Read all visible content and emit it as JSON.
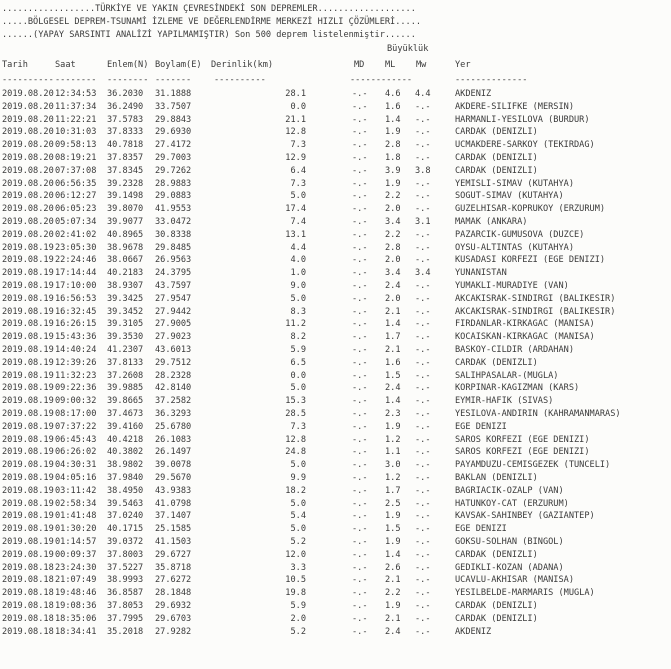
{
  "title_lines": [
    "..................TÜRKİYE VE YAKIN ÇEVRESİNDEKİ SON DEPREMLER...................",
    ".....BÖLGESEL DEPREM-TSUNAMİ İZLEME VE DEĞERLENDİRME MERKEZİ HIZLI ÇÖZÜMLERİ.....",
    "......(YAPAY SARSINTI ANALİZİ YAPILMAMIŞTIR) Son 500 deprem listelenmiştir......"
  ],
  "group_header": "Büyüklük",
  "columns": [
    "Tarih",
    "Saat",
    "Enlem(N)",
    "Boylam(E)",
    "Derinlik(km)",
    "MD",
    "ML",
    "Mw",
    "Yer"
  ],
  "dashes": [
    "----------",
    "--------",
    "--------",
    "-------",
    "----------",
    "------------",
    "--------------"
  ],
  "rows": [
    [
      "2019.08.20",
      "12:34:53",
      "36.2030",
      "31.1888",
      "28.1",
      "-.-",
      "4.6",
      "4.4",
      "AKDENIZ"
    ],
    [
      "2019.08.20",
      "11:37:34",
      "36.2490",
      "33.7507",
      "0.0",
      "-.-",
      "1.6",
      "-.-",
      "AKDERE-SILIFKE (MERSIN)"
    ],
    [
      "2019.08.20",
      "11:22:21",
      "37.5783",
      "29.8843",
      "21.1",
      "-.-",
      "1.4",
      "-.-",
      "HARMANLI-YESILOVA (BURDUR)"
    ],
    [
      "2019.08.20",
      "10:31:03",
      "37.8333",
      "29.6930",
      "12.8",
      "-.-",
      "1.9",
      "-.-",
      "CARDAK (DENIZLI)"
    ],
    [
      "2019.08.20",
      "09:58:13",
      "40.7818",
      "27.4172",
      "7.3",
      "-.-",
      "2.8",
      "-.-",
      "UCMAKDERE-SARKOY (TEKIRDAG)"
    ],
    [
      "2019.08.20",
      "08:19:21",
      "37.8357",
      "29.7003",
      "12.9",
      "-.-",
      "1.8",
      "-.-",
      "CARDAK (DENIZLI)"
    ],
    [
      "2019.08.20",
      "07:37:08",
      "37.8345",
      "29.7262",
      "6.4",
      "-.-",
      "3.9",
      "3.8",
      "CARDAK (DENIZLI)"
    ],
    [
      "2019.08.20",
      "06:56:35",
      "39.2328",
      "28.9883",
      "7.3",
      "-.-",
      "1.9",
      "-.-",
      "YEMISLI-SIMAV (KUTAHYA)"
    ],
    [
      "2019.08.20",
      "06:12:27",
      "39.1498",
      "29.0883",
      "5.0",
      "-.-",
      "2.2",
      "-.-",
      "SOGUT-SIMAV (KUTAHYA)"
    ],
    [
      "2019.08.20",
      "06:05:23",
      "39.8070",
      "41.9553",
      "17.4",
      "-.-",
      "2.0",
      "-.-",
      "GUZELHISAR-KOPRUKOY (ERZURUM)"
    ],
    [
      "2019.08.20",
      "05:07:34",
      "39.9077",
      "33.0472",
      "7.4",
      "-.-",
      "3.4",
      "3.1",
      "MAMAK (ANKARA)"
    ],
    [
      "2019.08.20",
      "02:41:02",
      "40.8965",
      "30.8338",
      "13.1",
      "-.-",
      "2.2",
      "-.-",
      "PAZARCIK-GUMUSOVA (DUZCE)"
    ],
    [
      "2019.08.19",
      "23:05:30",
      "38.9678",
      "29.8485",
      "4.4",
      "-.-",
      "2.8",
      "-.-",
      "OYSU-ALTINTAS (KUTAHYA)"
    ],
    [
      "2019.08.19",
      "22:24:46",
      "38.0667",
      "26.9563",
      "4.0",
      "-.-",
      "2.0",
      "-.-",
      "KUSADASI KORFEZI (EGE DENIZI)"
    ],
    [
      "2019.08.19",
      "17:14:44",
      "40.2183",
      "24.3795",
      "1.0",
      "-.-",
      "3.4",
      "3.4",
      "YUNANISTAN"
    ],
    [
      "2019.08.19",
      "17:10:00",
      "38.9307",
      "43.7597",
      "9.0",
      "-.-",
      "2.4",
      "-.-",
      "YUMAKLI-MURADIYE (VAN)"
    ],
    [
      "2019.08.19",
      "16:56:53",
      "39.3425",
      "27.9547",
      "5.0",
      "-.-",
      "2.0",
      "-.-",
      "AKCAKISRAK-SINDIRGI (BALIKESIR)"
    ],
    [
      "2019.08.19",
      "16:32:45",
      "39.3452",
      "27.9442",
      "8.3",
      "-.-",
      "2.1",
      "-.-",
      "AKCAKISRAK-SINDIRGI (BALIKESIR)"
    ],
    [
      "2019.08.19",
      "16:26:15",
      "39.3105",
      "27.9005",
      "11.2",
      "-.-",
      "1.4",
      "-.-",
      "FIRDANLAR-KIRKAGAC (MANISA)"
    ],
    [
      "2019.08.19",
      "15:43:36",
      "39.3530",
      "27.9023",
      "8.2",
      "-.-",
      "1.7",
      "-.-",
      "KOCAISKAN-KIRKAGAC (MANISA)"
    ],
    [
      "2019.08.19",
      "14:40:24",
      "41.2307",
      "43.6013",
      "5.9",
      "-.-",
      "2.1",
      "-.-",
      "BASKOY-CILDIR (ARDAHAN)"
    ],
    [
      "2019.08.19",
      "12:39:26",
      "37.8133",
      "29.7512",
      "6.5",
      "-.-",
      "1.6",
      "-.-",
      "CARDAK (DENIZLI)"
    ],
    [
      "2019.08.19",
      "11:32:23",
      "37.2608",
      "28.2328",
      "0.0",
      "-.-",
      "1.5",
      "-.-",
      "SALIHPASALAR-(MUGLA)"
    ],
    [
      "2019.08.19",
      "09:22:36",
      "39.9885",
      "42.8140",
      "5.0",
      "-.-",
      "2.4",
      "-.-",
      "KORPINAR-KAGIZMAN (KARS)"
    ],
    [
      "2019.08.19",
      "09:00:32",
      "39.8665",
      "37.2582",
      "15.3",
      "-.-",
      "1.4",
      "-.-",
      "EYMIR-HAFIK (SIVAS)"
    ],
    [
      "2019.08.19",
      "08:17:00",
      "37.4673",
      "36.3293",
      "28.5",
      "-.-",
      "2.3",
      "-.-",
      "YESILOVA-ANDIRIN (KAHRAMANMARAS)"
    ],
    [
      "2019.08.19",
      "07:37:22",
      "39.4160",
      "25.6780",
      "7.3",
      "-.-",
      "1.9",
      "-.-",
      "EGE DENIZI"
    ],
    [
      "2019.08.19",
      "06:45:43",
      "40.4218",
      "26.1083",
      "12.8",
      "-.-",
      "1.2",
      "-.-",
      "SAROS KORFEZI (EGE DENIZI)"
    ],
    [
      "2019.08.19",
      "06:26:02",
      "40.3802",
      "26.1497",
      "24.8",
      "-.-",
      "1.1",
      "-.-",
      "SAROS KORFEZI (EGE DENIZI)"
    ],
    [
      "2019.08.19",
      "04:30:31",
      "38.9802",
      "39.0078",
      "5.0",
      "-.-",
      "3.0",
      "-.-",
      "PAYAMDUZU-CEMISGEZEK (TUNCELI)"
    ],
    [
      "2019.08.19",
      "04:05:16",
      "37.9840",
      "29.5670",
      "9.9",
      "-.-",
      "1.2",
      "-.-",
      "BAKLAN (DENIZLI)"
    ],
    [
      "2019.08.19",
      "03:11:42",
      "38.4950",
      "43.9383",
      "18.2",
      "-.-",
      "1.7",
      "-.-",
      "BAGRIACIK-OZALP (VAN)"
    ],
    [
      "2019.08.19",
      "02:58:34",
      "39.5463",
      "41.0798",
      "5.0",
      "-.-",
      "2.5",
      "-.-",
      "HATUNKOY-CAT (ERZURUM)"
    ],
    [
      "2019.08.19",
      "01:41:48",
      "37.0240",
      "37.1407",
      "5.4",
      "-.-",
      "1.9",
      "-.-",
      "KAVSAK-SAHINBEY (GAZIANTEP)"
    ],
    [
      "2019.08.19",
      "01:30:20",
      "40.1715",
      "25.1585",
      "5.0",
      "-.-",
      "1.5",
      "-.-",
      "EGE DENIZI"
    ],
    [
      "2019.08.19",
      "01:14:57",
      "39.0372",
      "41.1503",
      "5.2",
      "-.-",
      "1.9",
      "-.-",
      "GOKSU-SOLHAN (BINGOL)"
    ],
    [
      "2019.08.19",
      "00:09:37",
      "37.8003",
      "29.6727",
      "12.0",
      "-.-",
      "1.4",
      "-.-",
      "CARDAK (DENIZLI)"
    ],
    [
      "2019.08.18",
      "23:24:30",
      "37.5227",
      "35.8718",
      "3.3",
      "-.-",
      "2.6",
      "-.-",
      "GEDIKLI-KOZAN (ADANA)"
    ],
    [
      "2019.08.18",
      "21:07:49",
      "38.9993",
      "27.6272",
      "10.5",
      "-.-",
      "2.1",
      "-.-",
      "UCAVLU-AKHISAR (MANISA)"
    ],
    [
      "2019.08.18",
      "19:48:46",
      "36.8587",
      "28.1848",
      "19.8",
      "-.-",
      "2.2",
      "-.-",
      "YESILBELDE-MARMARIS (MUGLA)"
    ],
    [
      "2019.08.18",
      "19:08:36",
      "37.8053",
      "29.6932",
      "5.9",
      "-.-",
      "1.9",
      "-.-",
      "CARDAK (DENIZLI)"
    ],
    [
      "2019.08.18",
      "18:35:06",
      "37.7995",
      "29.6703",
      "2.0",
      "-.-",
      "2.1",
      "-.-",
      "CARDAK (DENIZLI)"
    ],
    [
      "2019.08.18",
      "18:34:41",
      "35.2018",
      "27.9282",
      "5.2",
      "-.-",
      "2.4",
      "-.-",
      "AKDENIZ"
    ]
  ]
}
